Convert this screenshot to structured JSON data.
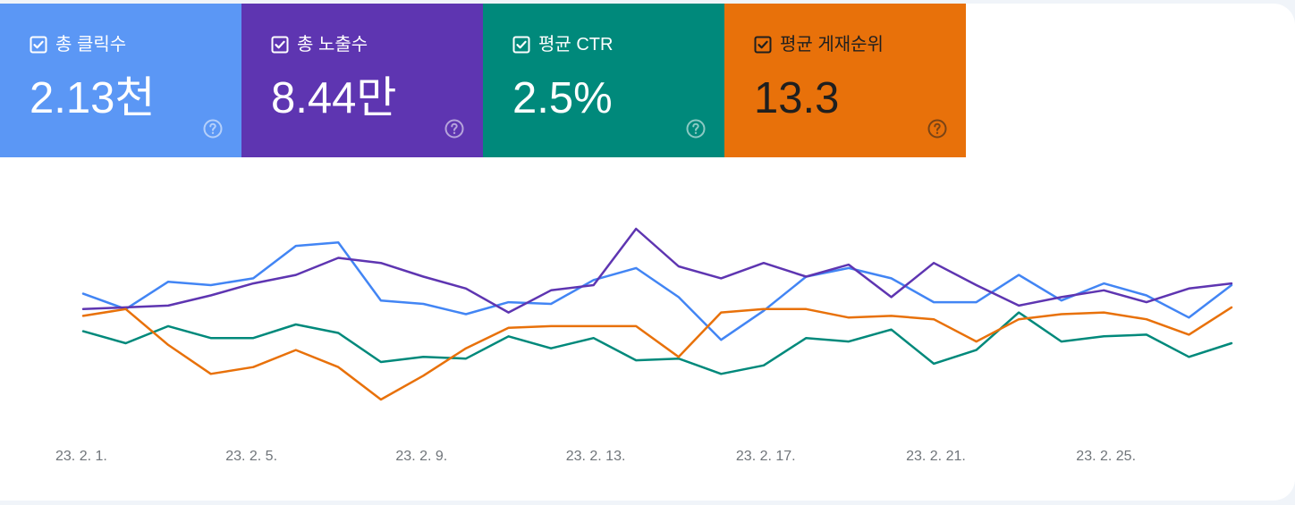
{
  "metrics": [
    {
      "label": "총 클릭수",
      "value": "2.13천",
      "color": "#5b97f5",
      "text_color": "#ffffff",
      "checked": true,
      "help_icon": "help-circle-icon"
    },
    {
      "label": "총 노출수",
      "value": "8.44만",
      "color": "#5e35b1",
      "text_color": "#ffffff",
      "checked": true,
      "help_icon": "help-circle-icon"
    },
    {
      "label": "평균 CTR",
      "value": "2.5%",
      "color": "#00897b",
      "text_color": "#ffffff",
      "checked": true,
      "help_icon": "help-circle-icon"
    },
    {
      "label": "평균 게재순위",
      "value": "13.3",
      "color": "#e8710a",
      "text_color": "#1f1f1f",
      "checked": true,
      "help_icon": "help-circle-icon"
    }
  ],
  "chart_data": {
    "type": "line",
    "x": [
      "23. 2. 1.",
      "23. 2. 2.",
      "23. 2. 3.",
      "23. 2. 4.",
      "23. 2. 5.",
      "23. 2. 6.",
      "23. 2. 7.",
      "23. 2. 8.",
      "23. 2. 9.",
      "23. 2. 10.",
      "23. 2. 11.",
      "23. 2. 12.",
      "23. 2. 13.",
      "23. 2. 14.",
      "23. 2. 15.",
      "23. 2. 16.",
      "23. 2. 17.",
      "23. 2. 18.",
      "23. 2. 19.",
      "23. 2. 20.",
      "23. 2. 21.",
      "23. 2. 22.",
      "23. 2. 23.",
      "23. 2. 24.",
      "23. 2. 25.",
      "23. 2. 26.",
      "23. 2. 27.",
      "23. 2. 28."
    ],
    "tick_labels": [
      "23. 2. 1.",
      "23. 2. 5.",
      "23. 2. 9.",
      "23. 2. 13.",
      "23. 2. 17.",
      "23. 2. 21.",
      "23. 2. 25."
    ],
    "normalized_scale": "each series scaled to its own 0-100 range; axes hidden",
    "ylim": [
      0,
      100
    ],
    "grid": false,
    "series": [
      {
        "color": "#4285f4",
        "values": [
          62,
          53,
          69,
          67,
          71,
          90,
          92,
          58,
          56,
          50,
          57,
          56,
          70,
          77,
          60,
          35,
          52,
          72,
          77,
          71,
          57,
          57,
          73,
          58,
          68,
          61,
          48,
          67
        ]
      },
      {
        "color": "#5e35b1",
        "values": [
          53,
          54,
          55,
          61,
          68,
          73,
          83,
          80,
          72,
          65,
          51,
          64,
          67,
          100,
          78,
          71,
          80,
          72,
          79,
          60,
          80,
          67,
          55,
          60,
          64,
          57,
          65,
          68
        ]
      },
      {
        "color": "#00897b",
        "values": [
          40,
          33,
          43,
          36,
          36,
          44,
          39,
          22,
          25,
          24,
          37,
          30,
          36,
          23,
          24,
          15,
          20,
          36,
          34,
          41,
          21,
          29,
          51,
          34,
          37,
          38,
          25,
          33
        ]
      },
      {
        "color": "#e8710a",
        "values": [
          49,
          53,
          32,
          15,
          19,
          29,
          19,
          0,
          14,
          30,
          42,
          43,
          43,
          43,
          25,
          51,
          53,
          53,
          48,
          49,
          47,
          34,
          47,
          50,
          51,
          47,
          38,
          54
        ]
      }
    ]
  }
}
